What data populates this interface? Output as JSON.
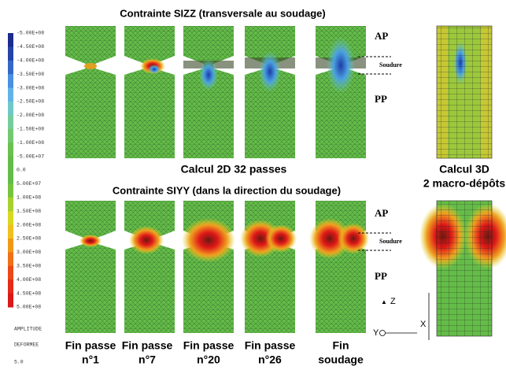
{
  "top_title": "Contrainte SIZZ (transversale au soudage)",
  "middle_label": "Calcul 2D 32 passes",
  "bottom_title": "Contrainte SIYY (dans la direction du soudage)",
  "model_3d": {
    "line1": "Calcul 3D",
    "line2": "2 macro-dépôts"
  },
  "zones_top": {
    "ap": "AP",
    "weld": "Soudure",
    "pp": "PP"
  },
  "zones_bottom": {
    "ap": "AP",
    "weld": "Soudure",
    "pp": "PP"
  },
  "colorbar": {
    "labels": [
      "-5.00E+08",
      "-4.50E+08",
      "-4.00E+08",
      "-3.50E+08",
      "-3.00E+08",
      "-2.50E+08",
      "-2.00E+08",
      "-1.50E+08",
      "-1.00E+08",
      "-5.00E+07",
      "0.0",
      "5.00E+07",
      "1.00E+08",
      "1.50E+08",
      "2.00E+08",
      "2.50E+08",
      "3.00E+08",
      "3.50E+08",
      "4.00E+08",
      "4.50E+08",
      "5.00E+08"
    ],
    "colors": [
      "#1c2c8c",
      "#2444a8",
      "#3468c8",
      "#4a90e0",
      "#62b4e8",
      "#70c8c8",
      "#78cc9c",
      "#74c870",
      "#6cc050",
      "#64bc48",
      "#64bc48",
      "#78c440",
      "#a8d030",
      "#d8d820",
      "#f0c020",
      "#f09818",
      "#f07018",
      "#ec4818",
      "#e42a18",
      "#dc1818"
    ]
  },
  "deformation": {
    "label1": "AMPLITUDE",
    "label2": "DEFORMEE",
    "value": "5.0"
  },
  "captions": [
    [
      "Fin passe",
      "n°1"
    ],
    [
      "Fin passe",
      "n°7"
    ],
    [
      "Fin passe",
      "n°20"
    ],
    [
      "Fin passe",
      "n°26"
    ],
    [
      "Fin",
      "soudage"
    ]
  ],
  "axes": {
    "z": "Z",
    "y": "Y",
    "x": "X"
  }
}
